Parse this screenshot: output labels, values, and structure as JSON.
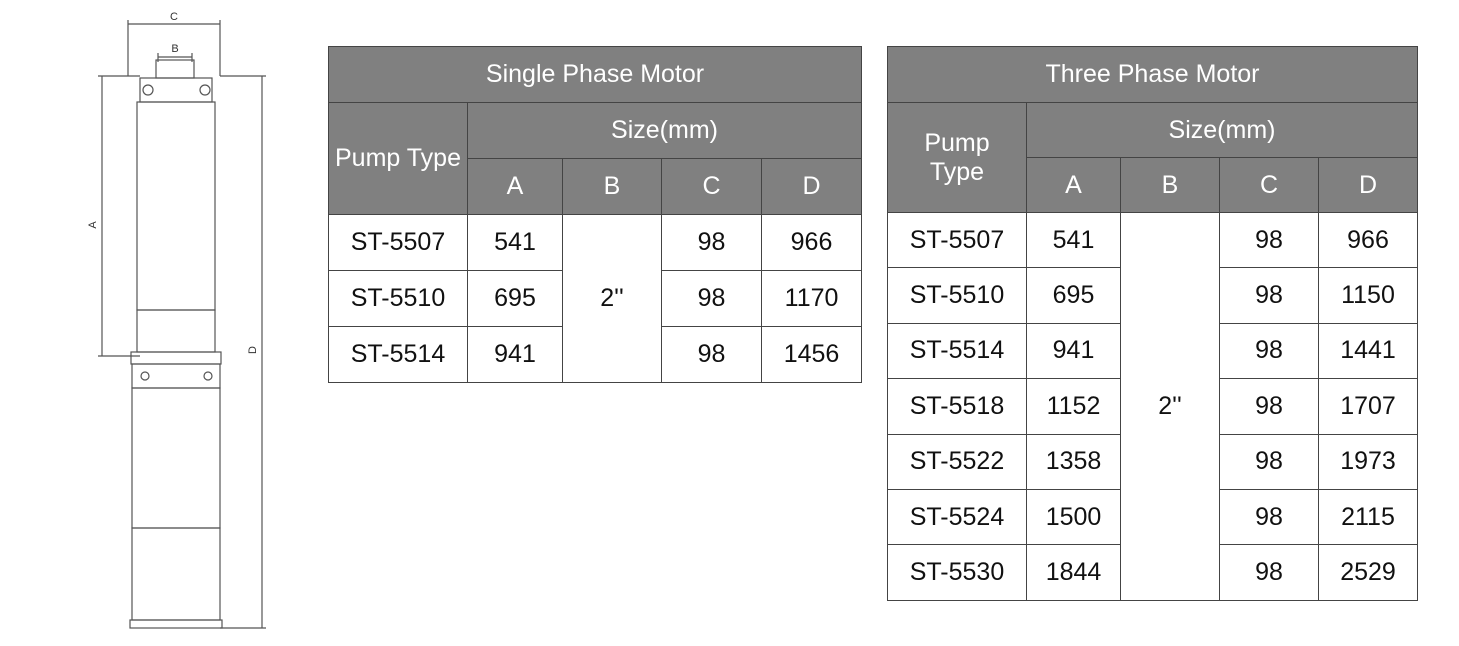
{
  "drawing": {
    "labels": [
      "C",
      "B",
      "A",
      "D"
    ]
  },
  "tables": [
    {
      "title": "Single Phase Motor",
      "pump_type": "Pump Type",
      "size": "Size(mm)",
      "columns": [
        "A",
        "B",
        "C",
        "D"
      ],
      "b_value": "2''",
      "rows": [
        [
          "ST-5507",
          "541",
          "98",
          "966"
        ],
        [
          "ST-5510",
          "695",
          "98",
          "1170"
        ],
        [
          "ST-5514",
          "941",
          "98",
          "1456"
        ]
      ]
    },
    {
      "title": "Three Phase Motor",
      "pump_type": "Pump Type",
      "size": "Size(mm)",
      "columns": [
        "A",
        "B",
        "C",
        "D"
      ],
      "b_value": "2''",
      "rows": [
        [
          "ST-5507",
          "541",
          "98",
          "966"
        ],
        [
          "ST-5510",
          "695",
          "98",
          "1150"
        ],
        [
          "ST-5514",
          "941",
          "98",
          "1441"
        ],
        [
          "ST-5518",
          "1152",
          "98",
          "1707"
        ],
        [
          "ST-5522",
          "1358",
          "98",
          "1973"
        ],
        [
          "ST-5524",
          "1500",
          "98",
          "2115"
        ],
        [
          "ST-5530",
          "1844",
          "98",
          "2529"
        ]
      ]
    }
  ]
}
